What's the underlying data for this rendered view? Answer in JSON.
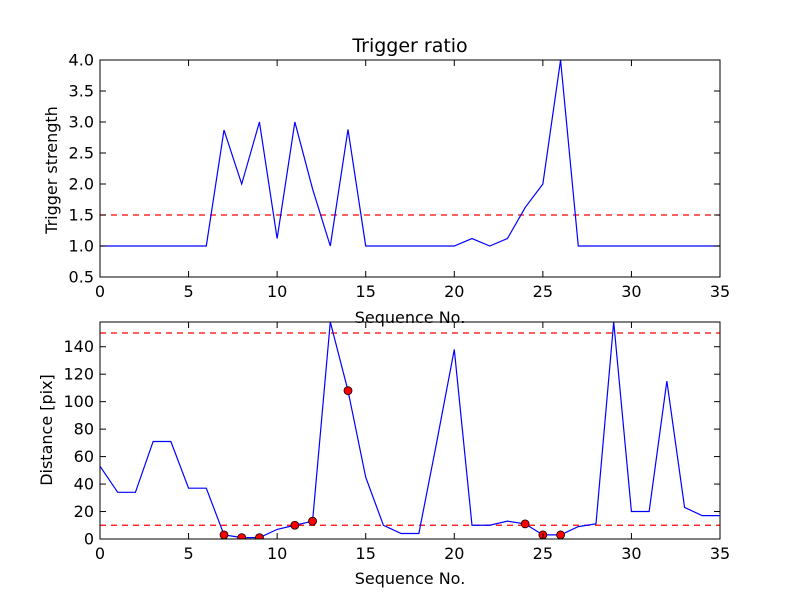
{
  "chart_data": [
    {
      "type": "line",
      "title": "Trigger ratio",
      "xlabel": "Sequence No.",
      "ylabel": "Trigger strength",
      "xlim": [
        0,
        35
      ],
      "ylim": [
        0.5,
        4.0
      ],
      "xticks": [
        0,
        5,
        10,
        15,
        20,
        25,
        30,
        35
      ],
      "yticks": [
        "0.5",
        "1.0",
        "1.5",
        "2.0",
        "2.5",
        "3.0",
        "3.5",
        "4.0"
      ],
      "threshold_lines": [
        1.5
      ],
      "line_color": "#0000ff",
      "threshold_color": "#ff0000",
      "x": [
        0,
        1,
        2,
        3,
        4,
        5,
        6,
        7,
        8,
        9,
        10,
        11,
        12,
        13,
        14,
        15,
        16,
        17,
        18,
        19,
        20,
        21,
        22,
        23,
        24,
        25,
        26,
        27,
        28,
        29,
        30,
        31,
        32,
        33,
        34,
        35
      ],
      "y": [
        1.0,
        1.0,
        1.0,
        1.0,
        1.0,
        1.0,
        1.0,
        2.87,
        2.0,
        3.0,
        1.12,
        3.0,
        1.92,
        1.0,
        2.88,
        1.0,
        1.0,
        1.0,
        1.0,
        1.0,
        1.0,
        1.12,
        1.0,
        1.12,
        1.62,
        2.0,
        4.0,
        1.0,
        1.0,
        1.0,
        1.0,
        1.0,
        1.0,
        1.0,
        1.0,
        1.0
      ]
    },
    {
      "type": "line",
      "title": "",
      "xlabel": "Sequence No.",
      "ylabel": "Distance [pix]",
      "xlim": [
        0,
        35
      ],
      "ylim": [
        0,
        158
      ],
      "xticks": [
        0,
        5,
        10,
        15,
        20,
        25,
        30,
        35
      ],
      "yticks": [
        0,
        20,
        40,
        60,
        80,
        100,
        120,
        140
      ],
      "threshold_lines": [
        150,
        10
      ],
      "line_color": "#0000ff",
      "threshold_color": "#ff0000",
      "marker_color": "#ff0000",
      "x": [
        0,
        1,
        2,
        3,
        4,
        5,
        6,
        7,
        8,
        9,
        10,
        11,
        12,
        13,
        14,
        15,
        16,
        17,
        18,
        19,
        20,
        21,
        22,
        23,
        24,
        25,
        26,
        27,
        28,
        29,
        30,
        31,
        32,
        33,
        34,
        35
      ],
      "y": [
        53,
        34,
        34,
        71,
        71,
        37,
        37,
        3,
        1,
        1,
        7,
        10,
        13,
        158,
        108,
        45,
        10,
        4,
        4,
        70,
        138,
        10,
        10,
        13,
        11,
        3,
        3,
        9,
        11,
        158,
        20,
        20,
        115,
        23,
        17,
        17
      ],
      "markers": {
        "x": [
          7,
          8,
          9,
          11,
          12,
          14,
          24,
          25,
          26
        ],
        "y": [
          3,
          1,
          1,
          10,
          13,
          108,
          11,
          3,
          3
        ]
      }
    }
  ]
}
